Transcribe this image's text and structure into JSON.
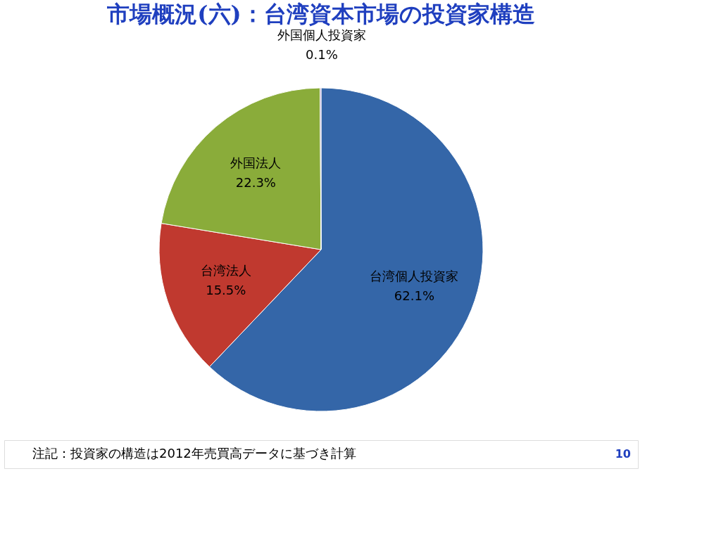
{
  "chart_data": {
    "type": "pie",
    "title": "市場概況(六)：台湾資本市場の投資家構造",
    "categories": [
      "台湾個人投資家",
      "台湾法人",
      "外国法人",
      "外国個人投資家"
    ],
    "values": [
      62.1,
      15.5,
      22.3,
      0.1
    ],
    "value_labels": [
      "62.1%",
      "15.5%",
      "22.3%",
      "0.1%"
    ],
    "colors": [
      "#3466a8",
      "#c0392f",
      "#8aac3a",
      "#8064a2"
    ],
    "legend": false,
    "annotations": [
      "注記：投資家の構造は2012年売買高データに基づき計算",
      "10"
    ]
  }
}
